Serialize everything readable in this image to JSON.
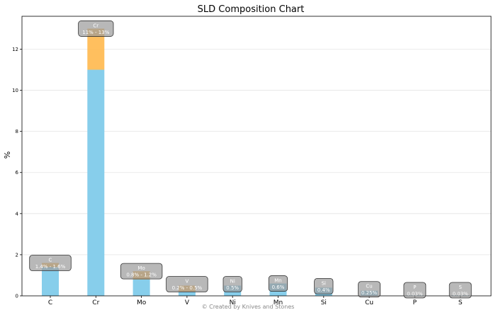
{
  "chart_data": {
    "type": "bar",
    "title": "SLD Composition Chart",
    "xlabel": "",
    "ylabel": "%",
    "ylim": [
      0,
      13.6
    ],
    "yticks": [
      0,
      2,
      4,
      6,
      8,
      10,
      12
    ],
    "grid": "horizontal",
    "categories": [
      "C",
      "Cr",
      "Mo",
      "V",
      "Ni",
      "Mn",
      "Si",
      "Cu",
      "P",
      "S"
    ],
    "series": [
      {
        "color": "#87CEEB",
        "values": [
          1.4,
          11,
          0.8,
          0.2,
          0.5,
          0.6,
          0.4,
          0.25,
          0.03,
          0.03
        ]
      },
      {
        "color": "#FFB84D",
        "values": [
          0.2,
          2,
          0.4,
          0.3,
          0,
          0,
          0,
          0,
          0,
          0
        ]
      }
    ],
    "annotations": [
      {
        "element": "C",
        "text": "1.4% - 1.6%"
      },
      {
        "element": "Cr",
        "text": "11% - 13%"
      },
      {
        "element": "Mo",
        "text": "0.8% - 1.2%"
      },
      {
        "element": "V",
        "text": "0.2% - 0.5%"
      },
      {
        "element": "Ni",
        "text": "0.5%"
      },
      {
        "element": "Mn",
        "text": "0.6%"
      },
      {
        "element": "Si",
        "text": "0.4%"
      },
      {
        "element": "Cu",
        "text": "0.25%"
      },
      {
        "element": "P",
        "text": "0.03%"
      },
      {
        "element": "S",
        "text": "0.03%"
      }
    ],
    "footer": "© Created by Knives and Stones"
  }
}
